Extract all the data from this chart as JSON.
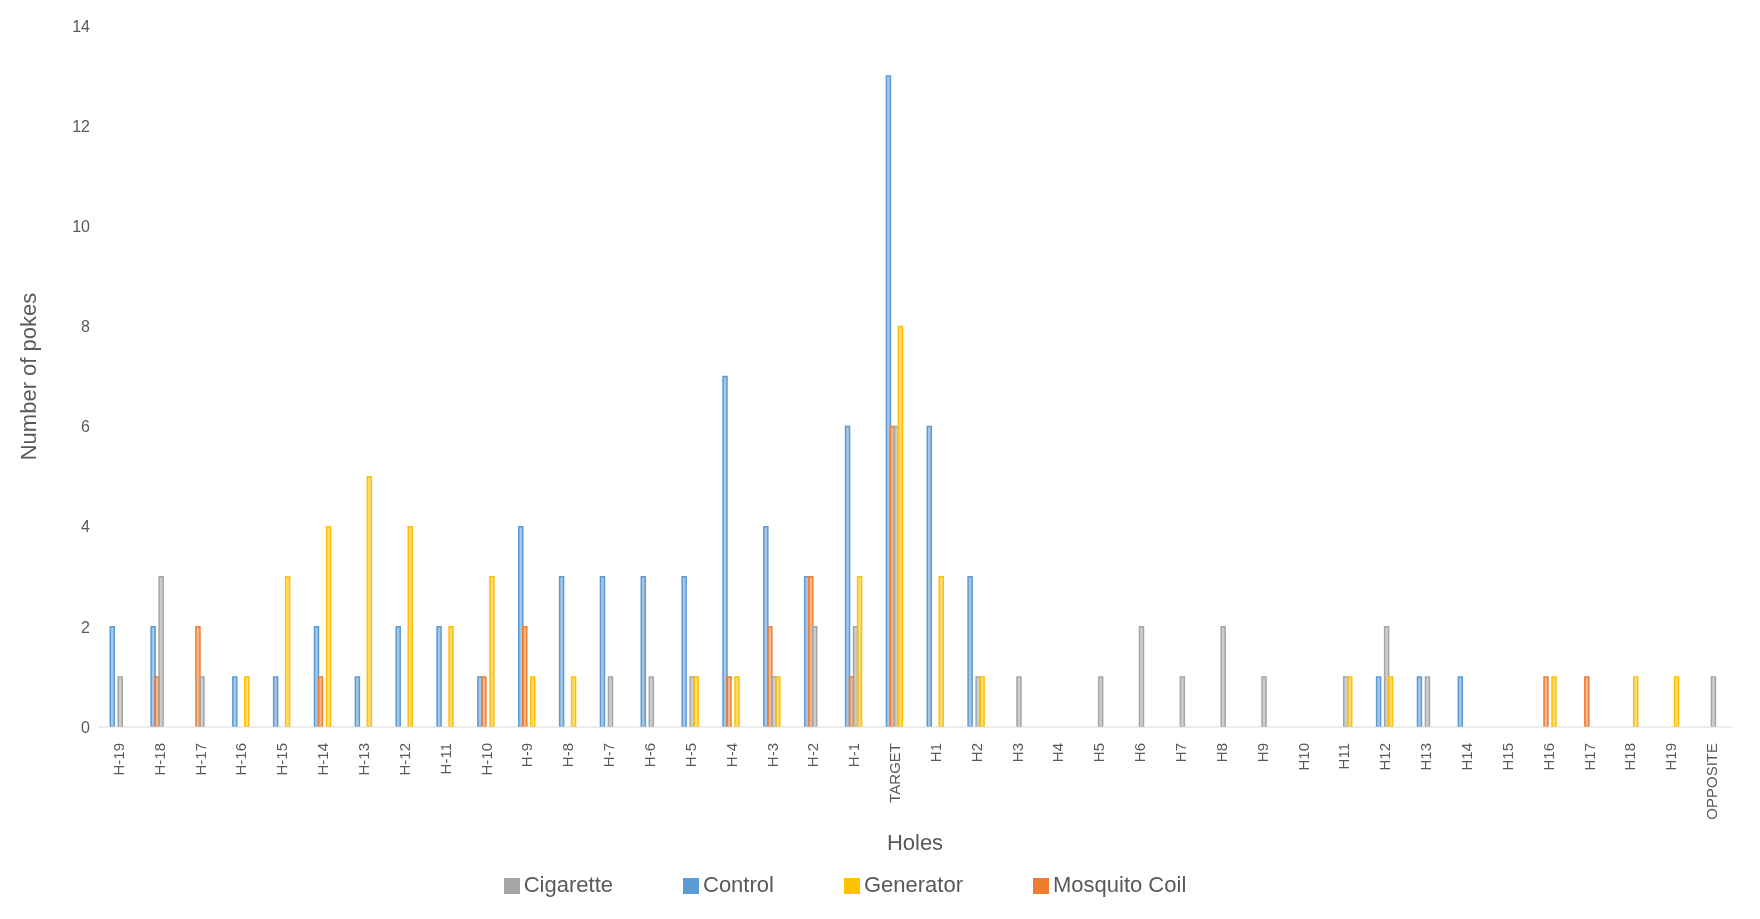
{
  "chart_data": {
    "type": "bar",
    "xlabel": "Holes",
    "ylabel": "Number of pokes",
    "ylim": [
      0,
      14
    ],
    "yticks": [
      0,
      2,
      4,
      6,
      8,
      10,
      12,
      14
    ],
    "grid": false,
    "legend": "bottom",
    "categories": [
      "H-19",
      "H-18",
      "H-17",
      "H-16",
      "H-15",
      "H-14",
      "H-13",
      "H-12",
      "H-11",
      "H-10",
      "H-9",
      "H-8",
      "H-7",
      "H-6",
      "H-5",
      "H-4",
      "H-3",
      "H-2",
      "H-1",
      "TARGET",
      "H1",
      "H2",
      "H3",
      "H4",
      "H5",
      "H6",
      "H7",
      "H8",
      "H9",
      "H10",
      "H11",
      "H12",
      "H13",
      "H14",
      "H15",
      "H16",
      "H17",
      "H18",
      "H19",
      "OPPOSITE"
    ],
    "series": [
      {
        "name": "Control",
        "color": "#5b9bd5",
        "values": [
          2,
          2,
          0,
          1,
          1,
          2,
          1,
          2,
          2,
          1,
          4,
          3,
          3,
          3,
          3,
          7,
          4,
          3,
          6,
          13,
          6,
          3,
          0,
          0,
          0,
          0,
          0,
          0,
          0,
          0,
          0,
          1,
          1,
          1,
          0,
          0,
          0,
          0,
          0,
          0
        ]
      },
      {
        "name": "Mosquito Coil",
        "color": "#ed7d31",
        "values": [
          0,
          1,
          2,
          0,
          0,
          1,
          0,
          0,
          0,
          1,
          2,
          0,
          0,
          0,
          0,
          1,
          2,
          3,
          1,
          6,
          0,
          0,
          0,
          0,
          0,
          0,
          0,
          0,
          0,
          0,
          0,
          0,
          0,
          0,
          0,
          1,
          1,
          0,
          0,
          0
        ]
      },
      {
        "name": "Cigarette",
        "color": "#a5a5a5",
        "values": [
          1,
          3,
          1,
          0,
          0,
          0,
          0,
          0,
          0,
          0,
          0,
          0,
          1,
          1,
          1,
          0,
          1,
          2,
          2,
          6,
          0,
          1,
          1,
          0,
          1,
          2,
          1,
          2,
          1,
          0,
          1,
          2,
          1,
          0,
          0,
          0,
          0,
          0,
          0,
          1
        ]
      },
      {
        "name": "Generator",
        "color": "#ffc000",
        "values": [
          0,
          0,
          0,
          1,
          3,
          4,
          5,
          4,
          2,
          3,
          1,
          1,
          0,
          0,
          1,
          1,
          1,
          0,
          3,
          8,
          3,
          1,
          0,
          0,
          0,
          0,
          0,
          0,
          0,
          0,
          1,
          1,
          0,
          0,
          0,
          1,
          0,
          1,
          1,
          0
        ]
      }
    ]
  }
}
